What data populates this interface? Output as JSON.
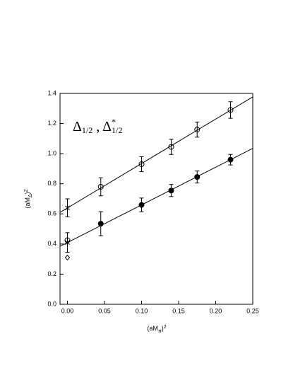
{
  "chart_data": {
    "type": "scatter",
    "annotation": [
      "Δ",
      "1/2",
      " , Δ",
      "*",
      "1/2"
    ],
    "x_label": [
      "(aM",
      "π",
      ")",
      "2"
    ],
    "y_label": [
      "(aM",
      "Δ",
      ")",
      "2"
    ],
    "xlim": [
      -0.01,
      0.25
    ],
    "ylim": [
      0,
      1.4
    ],
    "xticks": [
      {
        "value": 0,
        "label": "0.00"
      },
      0.05,
      {
        "value": 0.1,
        "label": "0.10"
      },
      0.15,
      {
        "value": 0.2,
        "label": "0.20"
      },
      0.25
    ],
    "yticks": [
      {
        "value": 0,
        "label": "0.0"
      },
      0.2,
      0.4,
      0.6,
      0.8,
      {
        "value": 1,
        "label": "1.0"
      },
      1.2,
      1.4
    ],
    "color": "#000000",
    "series": [
      {
        "marker": "open-circle",
        "x": [
          0.045,
          0.1,
          0.14,
          0.175,
          0.22
        ],
        "values": [
          0.78,
          0.93,
          1.045,
          1.16,
          1.29
        ],
        "errors": [
          0.06,
          0.05,
          0.05,
          0.05,
          0.055
        ]
      },
      {
        "marker": "filled-circle",
        "x": [
          0.045,
          0.1,
          0.14,
          0.175,
          0.22
        ],
        "values": [
          0.535,
          0.66,
          0.755,
          0.845,
          0.96
        ],
        "errors": [
          0.08,
          0.045,
          0.04,
          0.04,
          0.035
        ]
      },
      {
        "marker": "star",
        "x": [
          0,
          0
        ],
        "values": [
          0.64,
          0.41
        ],
        "errors": [
          0.06,
          0.065
        ]
      },
      {
        "marker": "open-circle",
        "x": [
          0
        ],
        "values": [
          0.425
        ]
      },
      {
        "marker": "diamond",
        "x": [
          0
        ],
        "values": [
          0.31
        ]
      },
      {
        "marker": "line",
        "x": [
          -0.01,
          0.25
        ],
        "values": [
          0.61,
          1.377
        ]
      },
      {
        "marker": "line",
        "x": [
          -0.01,
          0.25
        ],
        "values": [
          0.385,
          1.035
        ]
      }
    ]
  }
}
